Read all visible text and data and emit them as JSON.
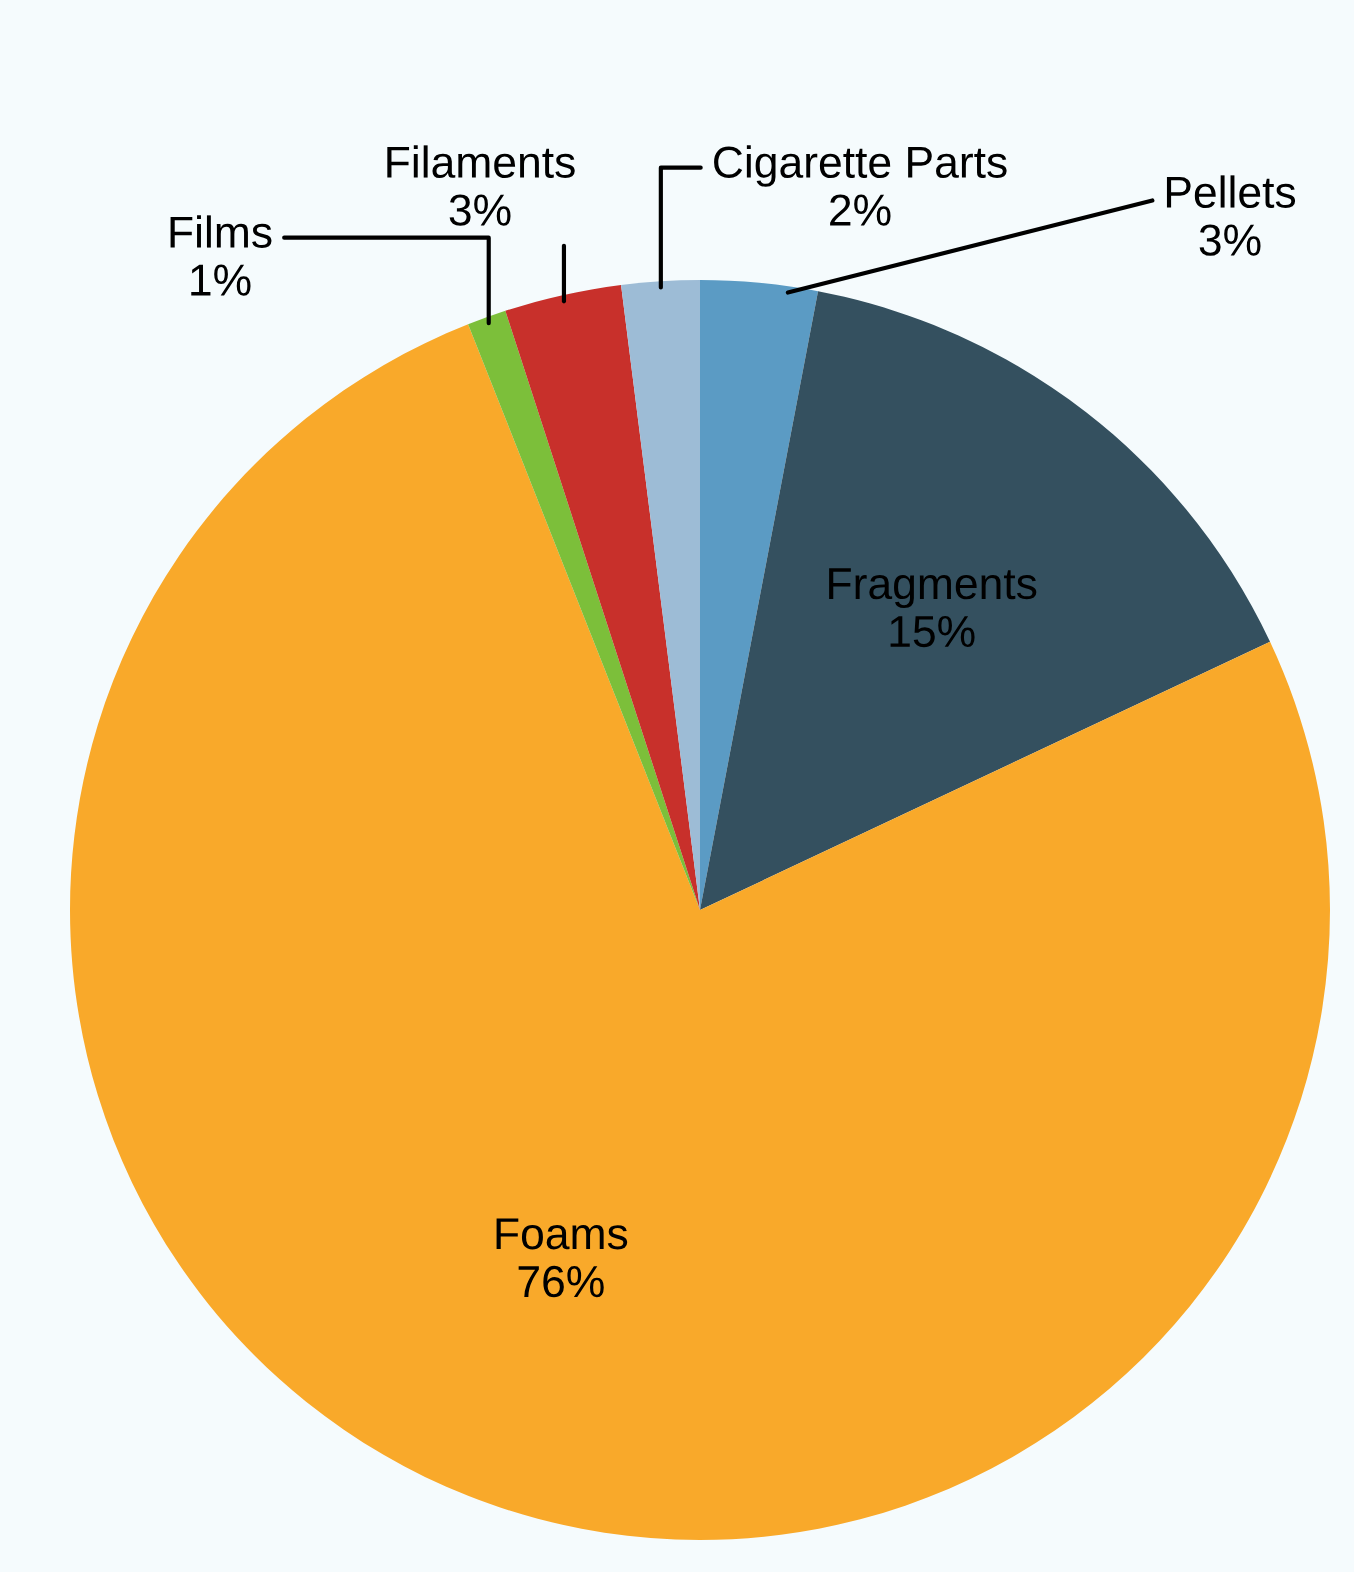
{
  "chart_data": {
    "type": "pie",
    "categories": [
      "Pellets",
      "Fragments",
      "Foams",
      "Films",
      "Filaments",
      "Cigarette Parts"
    ],
    "values": [
      3,
      15,
      76,
      1,
      3,
      2
    ],
    "value_labels": [
      "3%",
      "15%",
      "76%",
      "1%",
      "3%",
      "2%"
    ],
    "colors": [
      "#5b9bc4",
      "#34505f",
      "#f9a92a",
      "#7cbf3a",
      "#c8302b",
      "#9dbcd6"
    ],
    "legend": false
  }
}
